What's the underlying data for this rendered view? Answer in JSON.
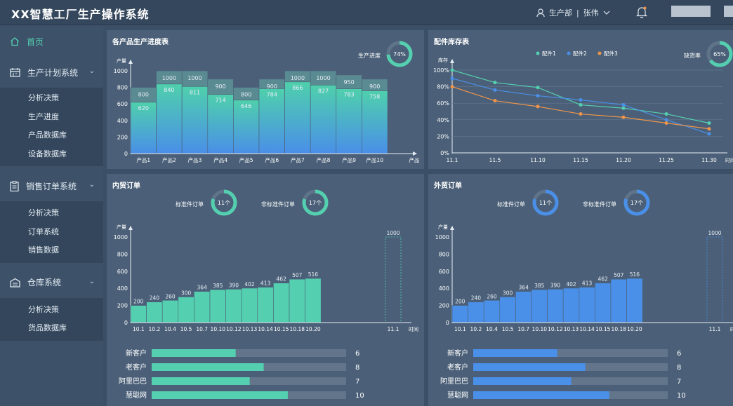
{
  "header": {
    "title": "XX智慧工厂生产操作系统",
    "department": "生产部",
    "separator": "|",
    "user": "张伟"
  },
  "sidebar": {
    "home": "首页",
    "groups": [
      {
        "label": "生产计划系统",
        "items": [
          "分析决策",
          "生产进度",
          "产品数据库",
          "设备数据库"
        ]
      },
      {
        "label": "销售订单系统",
        "items": [
          "分析决策",
          "订单系统",
          "销售数据"
        ]
      },
      {
        "label": "仓库系统",
        "items": [
          "分析决策",
          "货品数据库"
        ]
      }
    ]
  },
  "production": {
    "title": "各产品生产进度表",
    "progress_label": "生产进度",
    "progress_value": "74%",
    "progress_fraction": 0.74,
    "colors": {
      "accent": "#54d0b0",
      "bar_top": "#4fd0ac",
      "bar_bottom": "#4a8fe8",
      "plan": "#5a8a92"
    },
    "chart_data": {
      "type": "bar",
      "ylabel": "产量",
      "xlabel": "产品",
      "ylim": [
        0,
        1000
      ],
      "yticks": [
        "0",
        "200",
        "400",
        "600",
        "800",
        "1000"
      ],
      "categories": [
        "产品1",
        "产品2",
        "产品3",
        "产品4",
        "产品5",
        "产品6",
        "产品7",
        "产品8",
        "产品9",
        "产品10"
      ],
      "series": [
        {
          "values": [
            800,
            1000,
            1000,
            900,
            800,
            900,
            1000,
            1000,
            950,
            900
          ]
        },
        {
          "values": [
            620,
            840,
            811,
            714,
            646,
            784,
            866,
            827,
            783,
            758
          ]
        }
      ]
    }
  },
  "inventory": {
    "title": "配件库存表",
    "shortage_label": "缺货率",
    "shortage_value": "65%",
    "shortage_fraction": 0.65,
    "chart_data": {
      "type": "line",
      "ylabel": "库存",
      "xlabel": "时间",
      "ylim": [
        0,
        100
      ],
      "yticks": [
        "0%",
        "20%",
        "40%",
        "60%",
        "80%",
        "100%"
      ],
      "x": [
        "11.1",
        "11.5",
        "11.10",
        "11.15",
        "11.20",
        "11.25",
        "11.30"
      ],
      "legend_position": "top",
      "series": [
        {
          "name": "配件1",
          "color": "#54d0b0",
          "values": [
            100,
            85,
            79,
            58,
            54,
            47,
            36
          ]
        },
        {
          "name": "配件2",
          "color": "#4a8fe8",
          "values": [
            90,
            76,
            69,
            64,
            58,
            40,
            23
          ]
        },
        {
          "name": "配件3",
          "color": "#f0954a",
          "values": [
            80,
            63,
            56,
            47,
            43,
            36,
            29
          ]
        }
      ]
    }
  },
  "domestic": {
    "title": "内贸订单",
    "standard_label": "标准件订单",
    "standard_value": "11个",
    "nonstandard_label": "非标准件订单",
    "nonstandard_value": "17个",
    "standard_fraction": 0.8,
    "nonstandard_fraction": 0.8,
    "color": "#54d0b0",
    "chart_data": {
      "type": "bar",
      "ylabel": "产量",
      "xlabel": "时间",
      "ylim": [
        0,
        1000
      ],
      "yticks": [
        "0",
        "200",
        "400",
        "600",
        "800",
        "1000"
      ],
      "categories": [
        "10.1",
        "10.2",
        "10.4",
        "10.5",
        "10.7",
        "10.10",
        "10.12",
        "10.13",
        "10.14",
        "10.15",
        "10.18",
        "10.20"
      ],
      "values": [
        200,
        240,
        260,
        300,
        364,
        385,
        390,
        402,
        413,
        462,
        507,
        516
      ],
      "forecast_category": "11.1",
      "forecast_value": 1000
    },
    "ranking": [
      {
        "label": "新客户",
        "value": 6,
        "max": 10
      },
      {
        "label": "老客户",
        "value": 8,
        "max": 10
      },
      {
        "label": "阿里巴巴",
        "value": 7,
        "max": 10
      },
      {
        "label": "慧聪网",
        "value": 10,
        "max": 10
      }
    ]
  },
  "foreign": {
    "title": "外贸订单",
    "standard_label": "标准件订单",
    "standard_value": "11个",
    "nonstandard_label": "非标准件订单",
    "nonstandard_value": "17个",
    "standard_fraction": 0.8,
    "nonstandard_fraction": 0.8,
    "color": "#4a8fe8",
    "chart_data": {
      "type": "bar",
      "ylabel": "产量",
      "xlabel": "时间",
      "ylim": [
        0,
        1000
      ],
      "yticks": [
        "0",
        "200",
        "400",
        "600",
        "800",
        "1000"
      ],
      "categories": [
        "10.1",
        "10.2",
        "10.4",
        "10.5",
        "10.7",
        "10.10",
        "10.12",
        "10.13",
        "10.14",
        "10.15",
        "10.18",
        "10.20"
      ],
      "values": [
        200,
        240,
        260,
        300,
        364,
        385,
        390,
        402,
        413,
        462,
        507,
        516
      ],
      "forecast_category": "11.1",
      "forecast_value": 1000
    },
    "ranking": [
      {
        "label": "新客户",
        "value": 6,
        "max": 10
      },
      {
        "label": "老客户",
        "value": 8,
        "max": 10
      },
      {
        "label": "阿里巴巴",
        "value": 7,
        "max": 10
      },
      {
        "label": "慧聪网",
        "value": 10,
        "max": 10
      }
    ]
  }
}
